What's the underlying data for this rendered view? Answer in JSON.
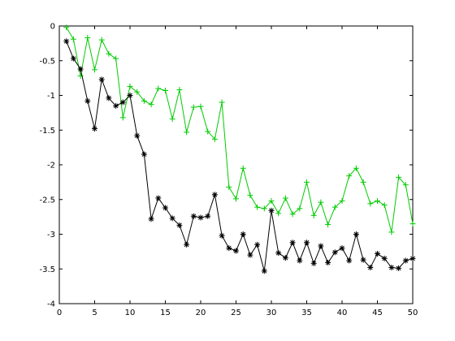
{
  "chart_data": {
    "type": "line",
    "title": "",
    "xlabel": "",
    "ylabel": "",
    "xlim": [
      0,
      50
    ],
    "ylim": [
      -4,
      0
    ],
    "xticks": [
      0,
      5,
      10,
      15,
      20,
      25,
      30,
      35,
      40,
      45,
      50
    ],
    "yticks": [
      0,
      -0.5,
      -1,
      -1.5,
      -2,
      -2.5,
      -3,
      -3.5,
      -4
    ],
    "xtick_labels": [
      "0",
      "5",
      "10",
      "15",
      "20",
      "25",
      "30",
      "35",
      "40",
      "45",
      "50"
    ],
    "ytick_labels": [
      "0",
      "-0.5",
      "-1",
      "-1.5",
      "-2",
      "-2.5",
      "-3",
      "-3.5",
      "-4"
    ],
    "grid": false,
    "legend": null,
    "x": [
      1,
      2,
      3,
      4,
      5,
      6,
      7,
      8,
      9,
      10,
      11,
      12,
      13,
      14,
      15,
      16,
      17,
      18,
      19,
      20,
      21,
      22,
      23,
      24,
      25,
      26,
      27,
      28,
      29,
      30,
      31,
      32,
      33,
      34,
      35,
      36,
      37,
      38,
      39,
      40,
      41,
      42,
      43,
      44,
      45,
      46,
      47,
      48,
      49,
      50
    ],
    "series": [
      {
        "color": "#00cc00",
        "marker": "plus",
        "values": [
          -0.02,
          -0.19,
          -0.72,
          -0.17,
          -0.63,
          -0.2,
          -0.4,
          -0.47,
          -1.32,
          -0.87,
          -0.95,
          -1.08,
          -1.13,
          -0.9,
          -0.93,
          -1.34,
          -0.92,
          -1.53,
          -1.17,
          -1.16,
          -1.52,
          -1.63,
          -1.1,
          -2.32,
          -2.49,
          -2.05,
          -2.44,
          -2.61,
          -2.63,
          -2.52,
          -2.7,
          -2.48,
          -2.71,
          -2.63,
          -2.25,
          -2.73,
          -2.54,
          -2.86,
          -2.61,
          -2.52,
          -2.16,
          -2.05,
          -2.25,
          -2.56,
          -2.52,
          -2.58,
          -2.97,
          -2.18,
          -2.29,
          -2.85
        ]
      },
      {
        "color": "#000000",
        "marker": "star",
        "values": [
          -0.22,
          -0.47,
          -0.62,
          -1.08,
          -1.48,
          -0.77,
          -1.04,
          -1.15,
          -1.1,
          -1.0,
          -1.58,
          -1.85,
          -2.78,
          -2.48,
          -2.62,
          -2.77,
          -2.87,
          -3.15,
          -2.74,
          -2.76,
          -2.74,
          -2.43,
          -3.02,
          -3.2,
          -3.24,
          -3.0,
          -3.3,
          -3.15,
          -3.53,
          -2.66,
          -3.27,
          -3.34,
          -3.12,
          -3.38,
          -3.12,
          -3.42,
          -3.17,
          -3.41,
          -3.26,
          -3.2,
          -3.38,
          -3.0,
          -3.37,
          -3.48,
          -3.28,
          -3.35,
          -3.48,
          -3.49,
          -3.38,
          -3.35
        ]
      }
    ]
  }
}
